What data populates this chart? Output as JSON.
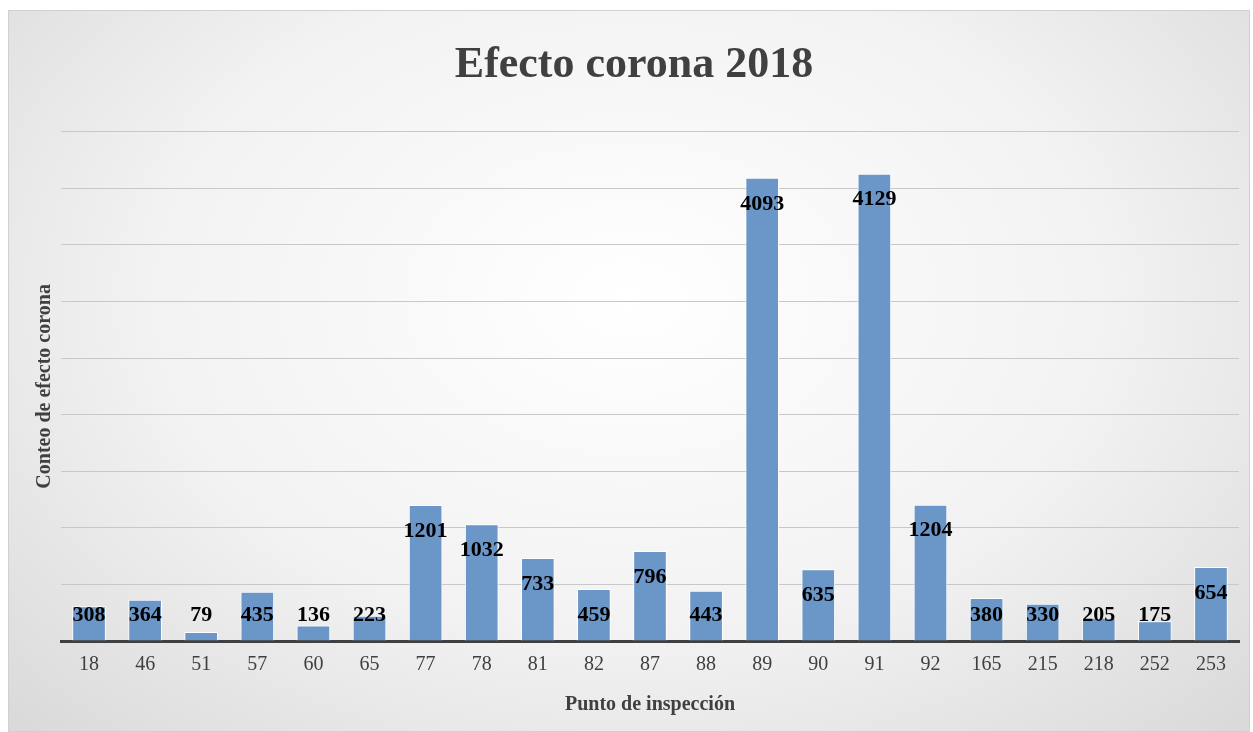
{
  "chart_data": {
    "type": "bar",
    "title": "Efecto corona 2018",
    "xlabel": "Punto de inspección",
    "ylabel": "Conteo de efecto corona",
    "categories": [
      "18",
      "46",
      "51",
      "57",
      "60",
      "65",
      "77",
      "78",
      "81",
      "82",
      "87",
      "88",
      "89",
      "90",
      "91",
      "92",
      "165",
      "215",
      "218",
      "252",
      "253"
    ],
    "values": [
      308,
      364,
      79,
      435,
      136,
      223,
      1201,
      1032,
      733,
      459,
      796,
      443,
      4093,
      635,
      4129,
      1204,
      380,
      330,
      205,
      175,
      654
    ],
    "color": "#6a96c8",
    "ylim": [
      0,
      4500
    ],
    "yticks": [
      {
        "value": 0,
        "label": null
      },
      {
        "value": 500,
        "label": null
      },
      {
        "value": 1000,
        "label": null
      },
      {
        "value": 1500,
        "label": null
      },
      {
        "value": 2000,
        "label": null
      },
      {
        "value": 2500,
        "label": null
      },
      {
        "value": 3000,
        "label": null
      },
      {
        "value": 3500,
        "label": null
      },
      {
        "value": 4000,
        "label": null
      },
      {
        "value": 4500,
        "label": null
      }
    ],
    "grid": "y",
    "tick_labels": "x",
    "data_labels": true,
    "legend": false
  }
}
